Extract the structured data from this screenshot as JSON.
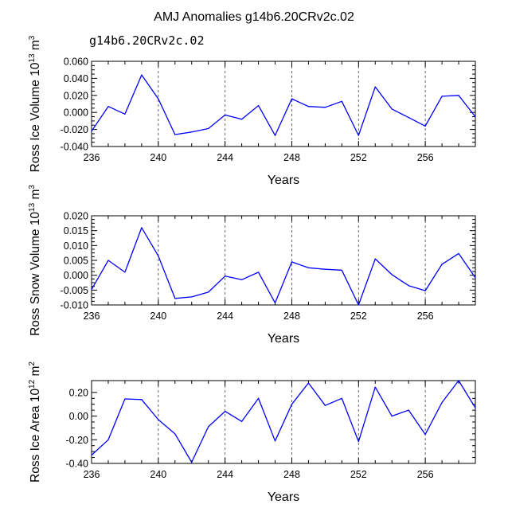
{
  "title": "AMJ Anomalies g14b6.20CRv2c.02",
  "subtitle": "g14b6.20CRv2c.02",
  "colors": {
    "series": "#0000ff",
    "subtitle": "#5a5ae8",
    "axis": "#000000",
    "grid": "#555555"
  },
  "chart_data": [
    {
      "type": "line",
      "ylabel_main": "Ross Ice Volume 10",
      "ylabel_exp": "13",
      "ylabel_unit": " m",
      "ylabel_unit_exp": "3",
      "xlabel": "Years",
      "xlim": [
        236,
        259
      ],
      "ylim": [
        -0.04,
        0.06
      ],
      "xticks": [
        236,
        240,
        244,
        248,
        252,
        256
      ],
      "xtick_labels": [
        "236",
        "240",
        "244",
        "248",
        "252",
        "256"
      ],
      "yticks": [
        -0.04,
        -0.02,
        0.0,
        0.02,
        0.04,
        0.06
      ],
      "ytick_labels": [
        "-0.040",
        "-0.020",
        "0.000",
        "0.020",
        "0.040",
        "0.060"
      ],
      "grid_x": [
        240,
        244,
        248,
        252,
        256
      ],
      "x": [
        236,
        237,
        238,
        239,
        240,
        241,
        242,
        243,
        244,
        245,
        246,
        247,
        248,
        249,
        250,
        251,
        252,
        253,
        254,
        255,
        256,
        257,
        258,
        259
      ],
      "values": [
        -0.022,
        0.007,
        -0.002,
        0.044,
        0.016,
        -0.026,
        -0.023,
        -0.019,
        -0.003,
        -0.008,
        0.008,
        -0.027,
        0.016,
        0.007,
        0.006,
        0.013,
        -0.027,
        0.03,
        0.004,
        -0.006,
        -0.016,
        0.019,
        0.02,
        -0.005
      ]
    },
    {
      "type": "line",
      "ylabel_main": "Ross Snow Volume 10",
      "ylabel_exp": "13",
      "ylabel_unit": " m",
      "ylabel_unit_exp": "3",
      "xlabel": "Years",
      "xlim": [
        236,
        259
      ],
      "ylim": [
        -0.01,
        0.02
      ],
      "xticks": [
        236,
        240,
        244,
        248,
        252,
        256
      ],
      "xtick_labels": [
        "236",
        "240",
        "244",
        "248",
        "252",
        "256"
      ],
      "yticks": [
        -0.01,
        -0.005,
        0.0,
        0.005,
        0.01,
        0.015,
        0.02
      ],
      "ytick_labels": [
        "-0.010",
        "-0.005",
        "0.000",
        "0.005",
        "0.010",
        "0.015",
        "0.020"
      ],
      "grid_x": [
        240,
        244,
        248,
        252,
        256
      ],
      "x": [
        236,
        237,
        238,
        239,
        240,
        241,
        242,
        243,
        244,
        245,
        246,
        247,
        248,
        249,
        250,
        251,
        252,
        253,
        254,
        255,
        256,
        257,
        258,
        259
      ],
      "values": [
        -0.0048,
        0.005,
        0.001,
        0.016,
        0.0065,
        -0.0078,
        -0.0073,
        -0.0057,
        -0.0003,
        -0.0015,
        0.001,
        -0.0093,
        0.0045,
        0.0025,
        0.002,
        0.0017,
        -0.01,
        0.0055,
        0.0002,
        -0.0035,
        -0.0052,
        0.0037,
        0.0073,
        -0.0008
      ]
    },
    {
      "type": "line",
      "ylabel_main": "Ross Ice Area 10",
      "ylabel_exp": "12",
      "ylabel_unit": " m",
      "ylabel_unit_exp": "2",
      "xlabel": "Years",
      "xlim": [
        236,
        259
      ],
      "ylim": [
        -0.4,
        0.3
      ],
      "xticks": [
        236,
        240,
        244,
        248,
        252,
        256
      ],
      "xtick_labels": [
        "236",
        "240",
        "244",
        "248",
        "252",
        "256"
      ],
      "yticks": [
        -0.4,
        -0.2,
        0.0,
        0.2
      ],
      "ytick_labels": [
        "-0.40",
        "-0.20",
        "0.00",
        "0.20"
      ],
      "grid_x": [
        240,
        244,
        248,
        252,
        256
      ],
      "x": [
        236,
        237,
        238,
        239,
        240,
        241,
        242,
        243,
        244,
        245,
        246,
        247,
        248,
        249,
        250,
        251,
        252,
        253,
        254,
        255,
        256,
        257,
        258,
        259
      ],
      "values": [
        -0.33,
        -0.2,
        0.145,
        0.14,
        -0.03,
        -0.15,
        -0.39,
        -0.09,
        0.04,
        -0.045,
        0.15,
        -0.21,
        0.1,
        0.28,
        0.09,
        0.15,
        -0.215,
        0.245,
        0.0,
        0.05,
        -0.155,
        0.115,
        0.3,
        0.07
      ]
    }
  ]
}
